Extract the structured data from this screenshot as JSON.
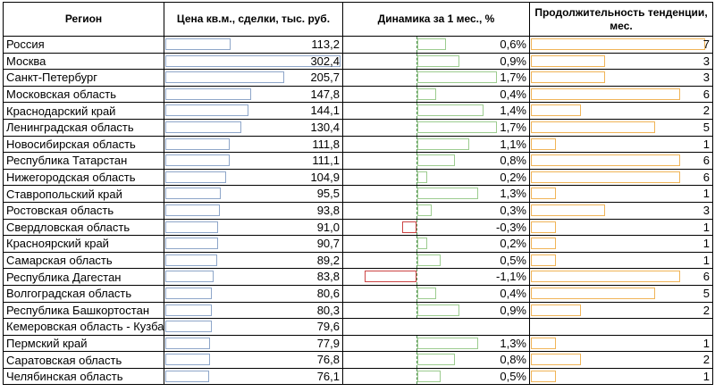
{
  "headers": {
    "region": "Регион",
    "price": "Цена кв.м., сделки, тыс. руб.",
    "dynamics": "Динамика за 1 мес., %",
    "duration": "Продолжительность тенденции, мес."
  },
  "colors": {
    "price_bar": "#8ea6c9",
    "positive_bar": "#9ccc8f",
    "negative_bar": "#cc4444",
    "duration_bar": "#f0b457"
  },
  "rows": [
    {
      "region": "Россия",
      "price": "113,2",
      "price_v": 113.2,
      "dyn": "0,6%",
      "dyn_v": 0.6,
      "dur": "7",
      "dur_v": 7
    },
    {
      "region": "Москва",
      "price": "302,4",
      "price_v": 302.4,
      "dyn": "0,9%",
      "dyn_v": 0.9,
      "dur": "3",
      "dur_v": 3
    },
    {
      "region": "Санкт-Петербург",
      "price": "205,7",
      "price_v": 205.7,
      "dyn": "1,7%",
      "dyn_v": 1.7,
      "dur": "3",
      "dur_v": 3
    },
    {
      "region": "Московская область",
      "price": "147,8",
      "price_v": 147.8,
      "dyn": "0,4%",
      "dyn_v": 0.4,
      "dur": "6",
      "dur_v": 6
    },
    {
      "region": "Краснодарский край",
      "price": "144,1",
      "price_v": 144.1,
      "dyn": "1,4%",
      "dyn_v": 1.4,
      "dur": "2",
      "dur_v": 2
    },
    {
      "region": "Ленинградская область",
      "price": "130,4",
      "price_v": 130.4,
      "dyn": "1,7%",
      "dyn_v": 1.7,
      "dur": "5",
      "dur_v": 5
    },
    {
      "region": "Новосибирская область",
      "price": "111,8",
      "price_v": 111.8,
      "dyn": "1,1%",
      "dyn_v": 1.1,
      "dur": "1",
      "dur_v": 1
    },
    {
      "region": "Республика Татарстан",
      "price": "111,1",
      "price_v": 111.1,
      "dyn": "0,8%",
      "dyn_v": 0.8,
      "dur": "6",
      "dur_v": 6
    },
    {
      "region": "Нижегородская область",
      "price": "104,9",
      "price_v": 104.9,
      "dyn": "0,2%",
      "dyn_v": 0.2,
      "dur": "6",
      "dur_v": 6
    },
    {
      "region": "Ставропольский край",
      "price": "95,5",
      "price_v": 95.5,
      "dyn": "1,3%",
      "dyn_v": 1.3,
      "dur": "1",
      "dur_v": 1
    },
    {
      "region": "Ростовская область",
      "price": "93,8",
      "price_v": 93.8,
      "dyn": "0,3%",
      "dyn_v": 0.3,
      "dur": "3",
      "dur_v": 3
    },
    {
      "region": "Свердловская область",
      "price": "91,0",
      "price_v": 91.0,
      "dyn": "-0,3%",
      "dyn_v": -0.3,
      "dur": "1",
      "dur_v": 1
    },
    {
      "region": "Красноярский край",
      "price": "90,7",
      "price_v": 90.7,
      "dyn": "0,2%",
      "dyn_v": 0.2,
      "dur": "1",
      "dur_v": 1
    },
    {
      "region": "Самарская область",
      "price": "89,2",
      "price_v": 89.2,
      "dyn": "0,5%",
      "dyn_v": 0.5,
      "dur": "1",
      "dur_v": 1
    },
    {
      "region": "Республика Дагестан",
      "price": "83,8",
      "price_v": 83.8,
      "dyn": "-1,1%",
      "dyn_v": -1.1,
      "dur": "6",
      "dur_v": 6
    },
    {
      "region": "Волгоградская область",
      "price": "80,6",
      "price_v": 80.6,
      "dyn": "0,4%",
      "dyn_v": 0.4,
      "dur": "5",
      "dur_v": 5
    },
    {
      "region": "Республика Башкортостан",
      "price": "80,3",
      "price_v": 80.3,
      "dyn": "0,9%",
      "dyn_v": 0.9,
      "dur": "2",
      "dur_v": 2
    },
    {
      "region": "Кемеровская область - Кузбасс",
      "price": "79,6",
      "price_v": 79.6,
      "dyn": "",
      "dyn_v": null,
      "dur": "",
      "dur_v": null
    },
    {
      "region": "Пермский край",
      "price": "77,9",
      "price_v": 77.9,
      "dyn": "1,3%",
      "dyn_v": 1.3,
      "dur": "1",
      "dur_v": 1
    },
    {
      "region": "Саратовская область",
      "price": "76,8",
      "price_v": 76.8,
      "dyn": "0,8%",
      "dyn_v": 0.8,
      "dur": "2",
      "dur_v": 2
    },
    {
      "region": "Челябинская область",
      "price": "76,1",
      "price_v": 76.1,
      "dyn": "0,5%",
      "dyn_v": 0.5,
      "dur": "1",
      "dur_v": 1
    }
  ]
}
